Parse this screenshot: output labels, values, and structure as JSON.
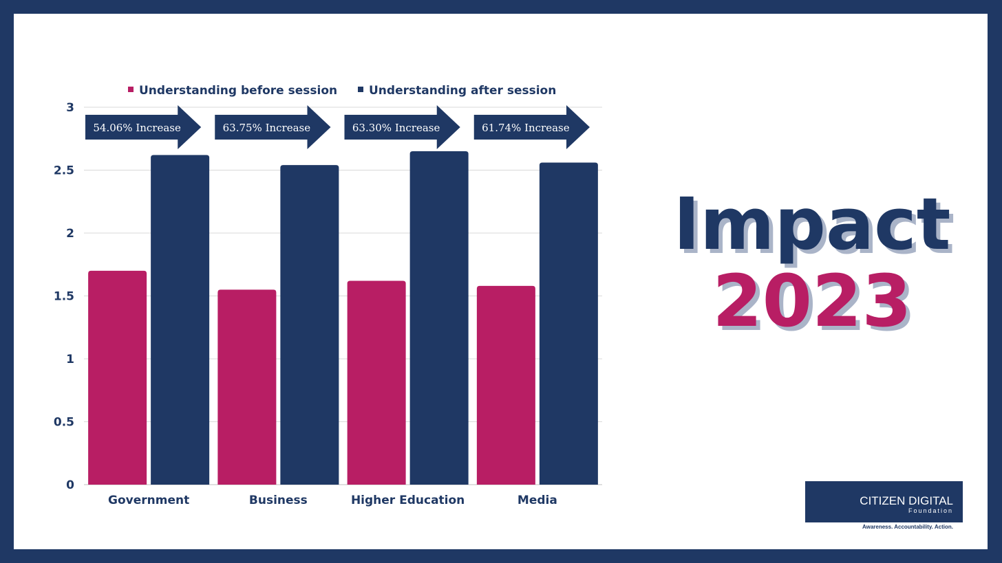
{
  "colors": {
    "frame": "#1f3864",
    "before": "#b81e64",
    "after": "#1f3864",
    "grid": "#d9d9d9",
    "arrow": "#1f3864",
    "text": "#1f3864"
  },
  "chart_data": {
    "type": "bar",
    "categories": [
      "Government",
      "Business",
      "Higher Education",
      "Media"
    ],
    "series": [
      {
        "name": "Understanding before session",
        "values": [
          1.7,
          1.55,
          1.62,
          1.58
        ]
      },
      {
        "name": "Understanding after session",
        "values": [
          2.62,
          2.54,
          2.65,
          2.56
        ]
      }
    ],
    "ylim": [
      0,
      3
    ],
    "yticks": [
      "0",
      "0.5",
      "1",
      "1.5",
      "2",
      "2.5",
      "3"
    ],
    "grid": true,
    "legend": "top",
    "annotations": [
      "54.06% Increase",
      "63.75% Increase",
      "63.30% Increase",
      "61.74% Increase"
    ]
  },
  "title": {
    "line1": "Impact",
    "line2": "2023"
  },
  "logo": {
    "name": "CITIZEN DIGITAL",
    "sub": "Foundation",
    "tagline": "Awareness. Accountability. Action."
  }
}
